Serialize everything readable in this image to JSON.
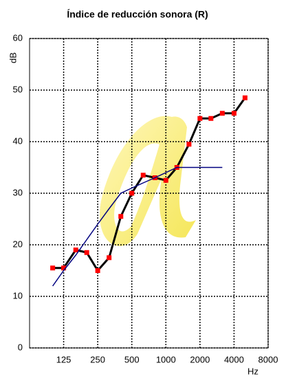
{
  "chart_data": {
    "type": "line",
    "title": "Índice de reducción sonora (R)",
    "y_label": "dB",
    "x_label": "Hz",
    "log_x": true,
    "grid": true,
    "xlim": [
      62.5,
      8000
    ],
    "xticks": [
      125,
      250,
      500,
      1000,
      2000,
      4000,
      8000
    ],
    "ylim": [
      0,
      60
    ],
    "yticks": [
      0,
      10,
      20,
      30,
      40,
      50,
      60
    ],
    "series": [
      {
        "color": "#000000",
        "marker_color": "#ff0000",
        "x": [
          100,
          125,
          160,
          200,
          250,
          315,
          400,
          500,
          630,
          800,
          1000,
          1250,
          1600,
          2000,
          2500,
          3150,
          4000,
          5000
        ],
        "values": [
          15.5,
          15.5,
          19,
          18.5,
          15,
          17.5,
          25.5,
          30,
          33.5,
          33,
          32.5,
          35,
          39.5,
          44.5,
          44.5,
          45.5,
          45.5,
          48.5
        ]
      },
      {
        "color": "#000080",
        "x": [
          100,
          125,
          160,
          200,
          250,
          315,
          400,
          500,
          630,
          800,
          1000,
          1250,
          1600,
          2000,
          2500,
          3150
        ],
        "values": [
          12,
          15,
          18,
          21,
          24,
          27,
          30,
          31,
          32,
          33,
          34,
          35,
          35,
          35,
          35,
          35
        ]
      }
    ]
  }
}
